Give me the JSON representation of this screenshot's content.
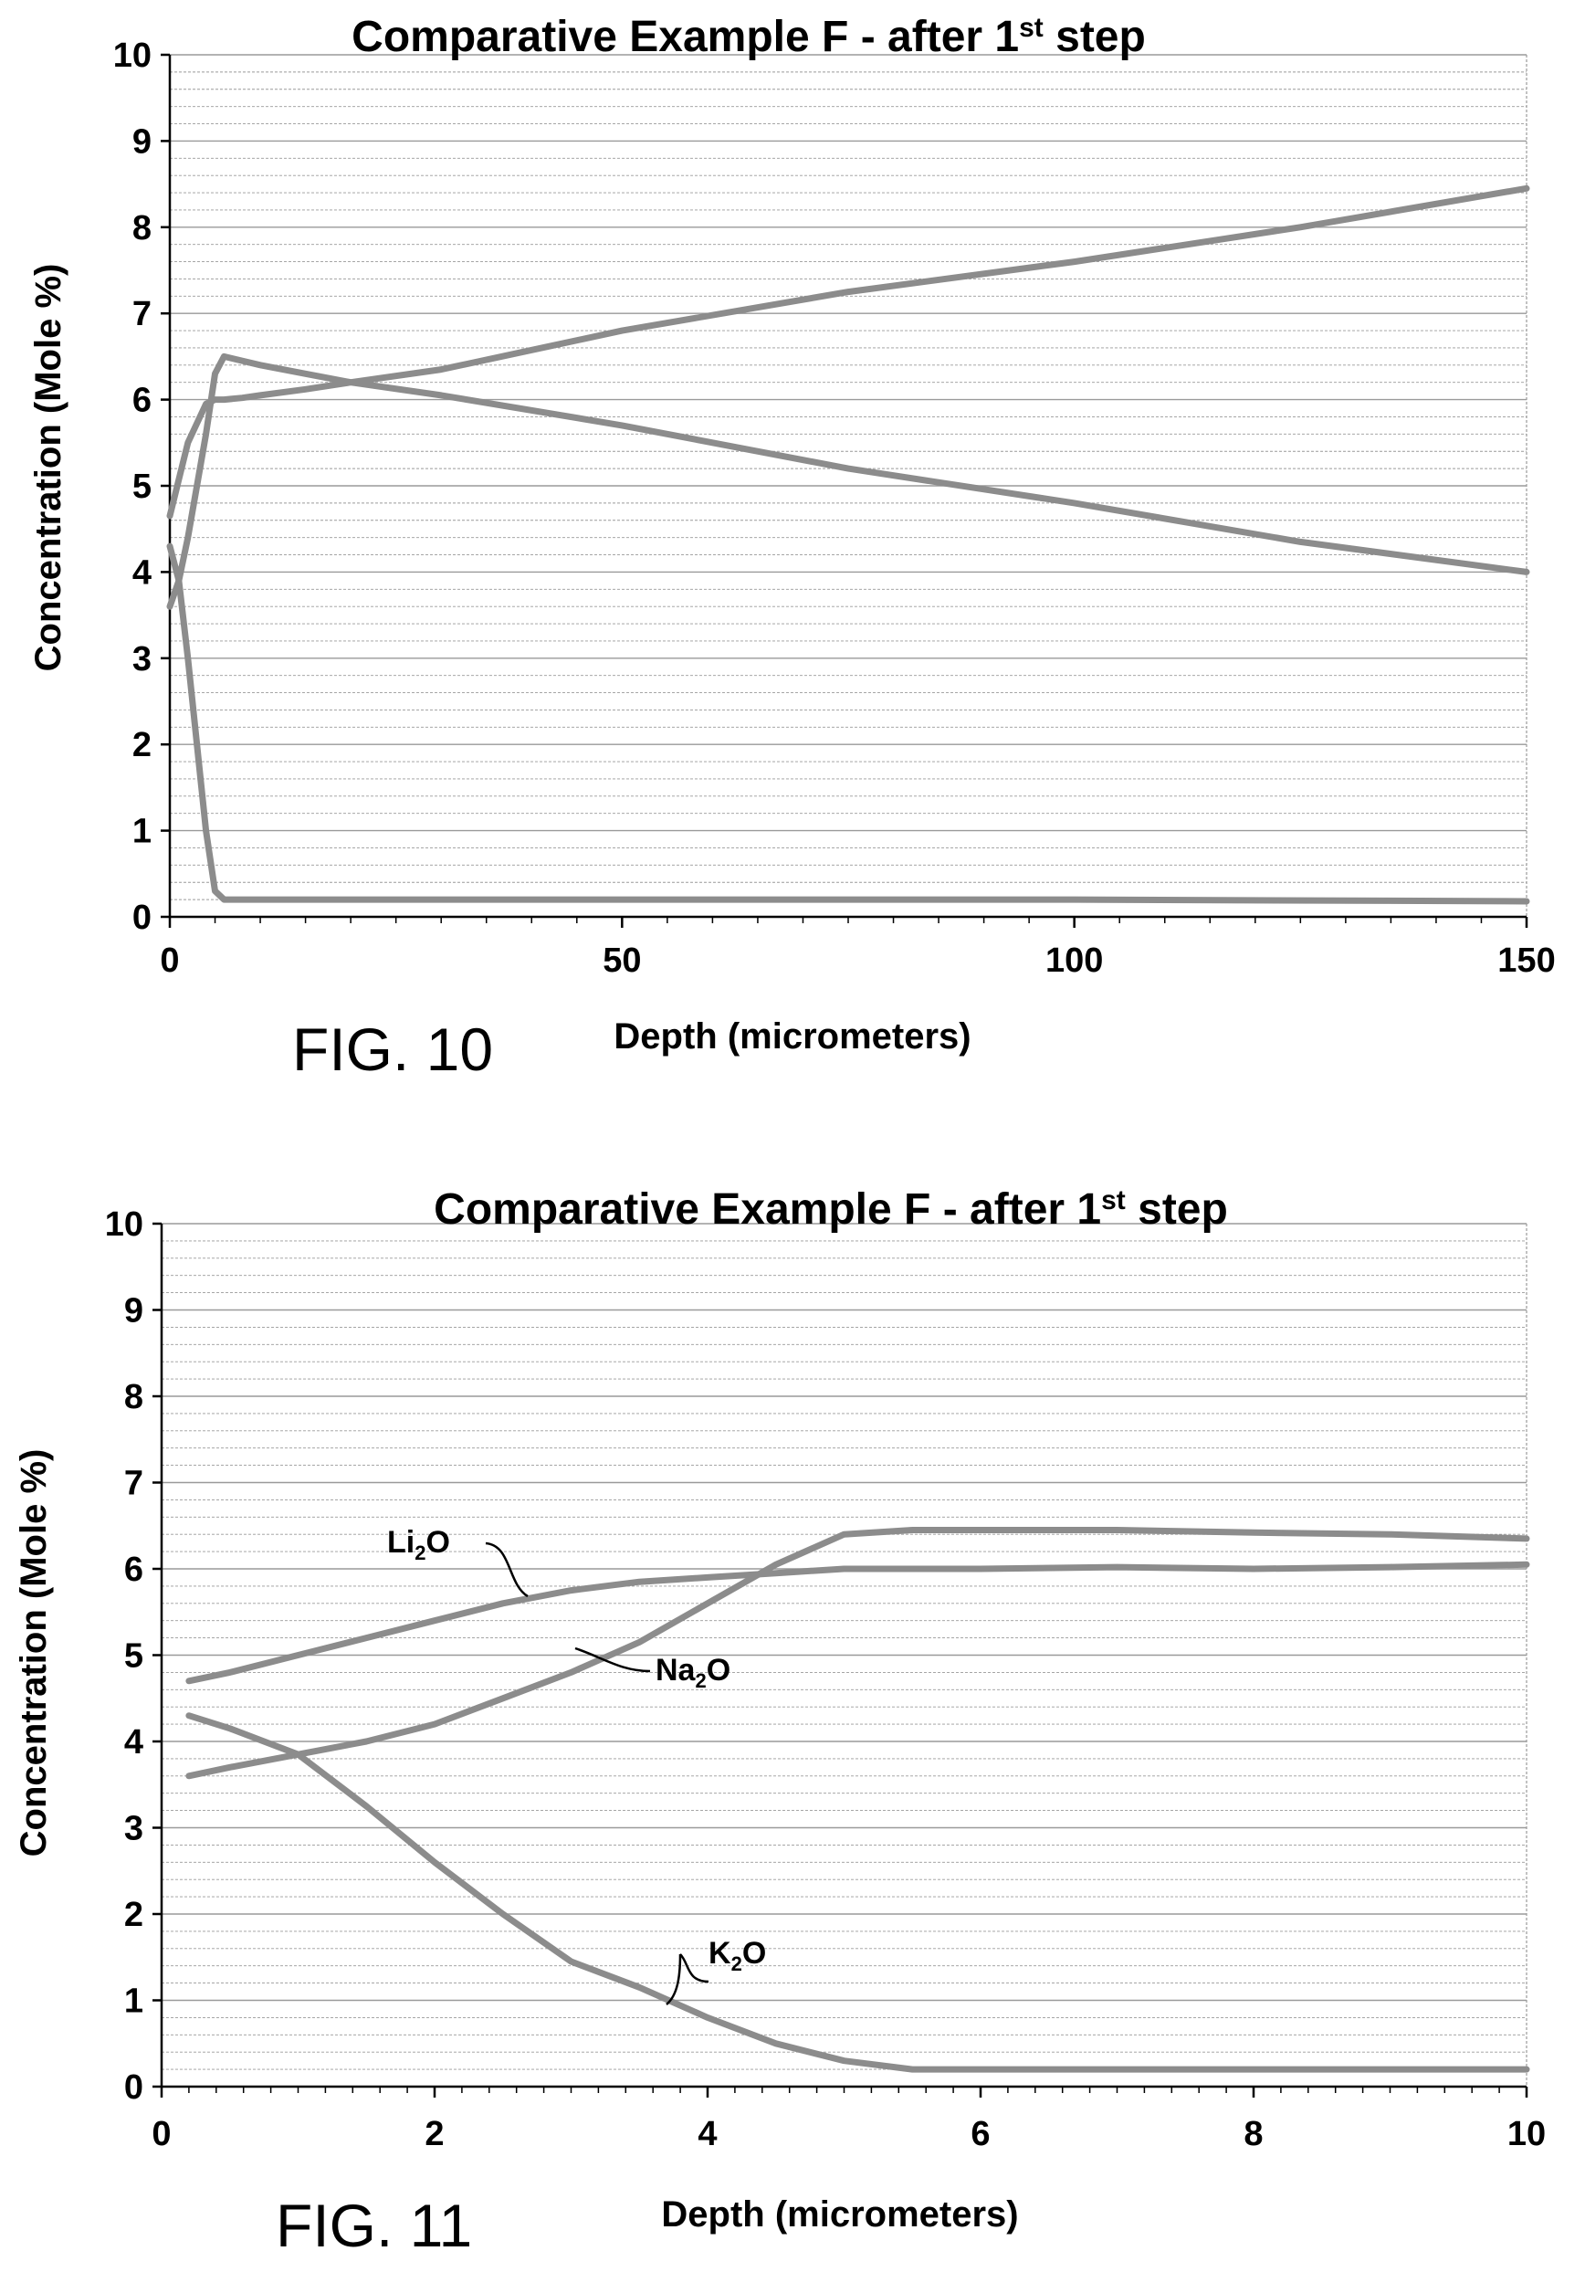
{
  "colors": {
    "series": "#8c8c8c",
    "grid": "#9a9a9a",
    "axis": "#000000"
  },
  "chart_data": [
    {
      "type": "line",
      "title": "Comparative Example F - after 1",
      "title_sup": "st",
      "title_tail": " step",
      "figure_label": "FIG. 10",
      "xlabel": "Depth (micrometers)",
      "ylabel": "Concentration (Mole %)",
      "xlim": [
        0,
        150
      ],
      "ylim": [
        0,
        10
      ],
      "x_ticks": [
        "0",
        "50",
        "100",
        "150"
      ],
      "y_ticks": [
        "0",
        "1",
        "2",
        "3",
        "4",
        "5",
        "6",
        "7",
        "8",
        "9",
        "10"
      ],
      "grid": "horizontal",
      "series": [
        {
          "x": [
            0,
            2,
            4,
            5,
            6,
            8,
            10,
            15,
            20,
            30,
            50,
            75,
            100,
            125,
            150
          ],
          "y": [
            4.65,
            5.5,
            5.95,
            6.0,
            6.0,
            6.02,
            6.05,
            6.12,
            6.2,
            6.35,
            6.8,
            7.25,
            7.6,
            8.0,
            8.45
          ]
        },
        {
          "x": [
            0,
            1,
            2,
            3,
            4,
            5,
            6,
            8,
            10,
            15,
            20,
            30,
            50,
            75,
            100,
            125,
            150
          ],
          "y": [
            3.6,
            3.9,
            4.4,
            5.0,
            5.6,
            6.3,
            6.5,
            6.45,
            6.4,
            6.3,
            6.2,
            6.05,
            5.7,
            5.2,
            4.8,
            4.35,
            4.0
          ]
        },
        {
          "x": [
            0,
            1,
            2,
            3,
            4,
            5,
            6,
            10,
            50,
            100,
            150
          ],
          "y": [
            4.3,
            3.9,
            3.0,
            2.0,
            1.0,
            0.3,
            0.2,
            0.2,
            0.2,
            0.2,
            0.18
          ]
        }
      ]
    },
    {
      "type": "line",
      "title": "Comparative Example F - after 1",
      "title_sup": "st",
      "title_tail": " step",
      "figure_label": "FIG. 11",
      "xlabel": "Depth (micrometers)",
      "ylabel": "Concentration (Mole %)",
      "xlim": [
        0,
        10
      ],
      "ylim": [
        0,
        10
      ],
      "x_ticks": [
        "0",
        "2",
        "4",
        "6",
        "8",
        "10"
      ],
      "y_ticks": [
        "0",
        "1",
        "2",
        "3",
        "4",
        "5",
        "6",
        "7",
        "8",
        "9",
        "10"
      ],
      "grid": "horizontal",
      "series": [
        {
          "name": "Li2O",
          "label_main": "Li",
          "label_sub": "2",
          "label_tail": "O",
          "x": [
            0.2,
            0.5,
            1,
            1.5,
            2,
            2.5,
            3,
            3.5,
            4,
            4.5,
            5,
            6,
            7,
            8,
            9,
            10
          ],
          "y": [
            4.7,
            4.8,
            5.0,
            5.2,
            5.4,
            5.6,
            5.75,
            5.85,
            5.9,
            5.95,
            6.0,
            6.0,
            6.02,
            6.0,
            6.02,
            6.05
          ]
        },
        {
          "name": "Na2O",
          "label_main": "Na",
          "label_sub": "2",
          "label_tail": "O",
          "x": [
            0.2,
            0.5,
            1,
            1.5,
            2,
            2.5,
            3,
            3.5,
            4,
            4.5,
            5,
            5.5,
            6,
            7,
            8,
            9,
            10
          ],
          "y": [
            3.6,
            3.7,
            3.85,
            4.0,
            4.2,
            4.5,
            4.8,
            5.15,
            5.6,
            6.05,
            6.4,
            6.45,
            6.45,
            6.45,
            6.42,
            6.4,
            6.35
          ]
        },
        {
          "name": "K2O",
          "label_main": "K",
          "label_sub": "2",
          "label_tail": "O",
          "x": [
            0.2,
            0.5,
            1,
            1.5,
            2,
            2.5,
            3,
            3.5,
            4,
            4.5,
            5,
            5.5,
            6,
            7,
            8,
            9,
            10
          ],
          "y": [
            4.3,
            4.15,
            3.85,
            3.25,
            2.6,
            2.0,
            1.45,
            1.15,
            0.8,
            0.5,
            0.3,
            0.2,
            0.2,
            0.2,
            0.2,
            0.2,
            0.2
          ]
        }
      ]
    }
  ]
}
